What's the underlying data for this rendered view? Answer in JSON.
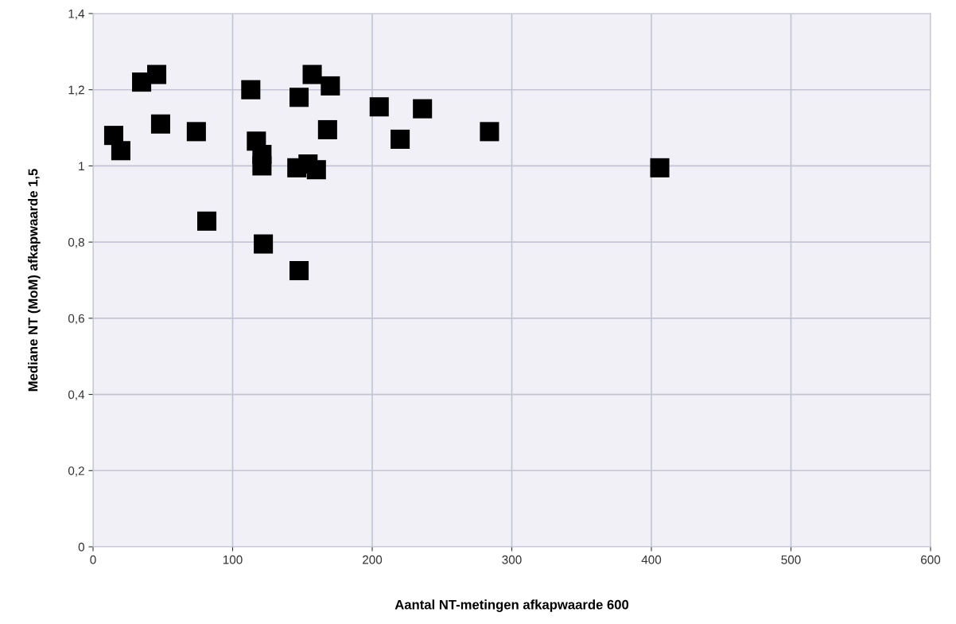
{
  "chart_data": {
    "type": "scatter",
    "xlabel": "Aantal NT-metingen afkapwaarde 600",
    "ylabel": "Mediane NT (MoM) afkapwaarde 1,5",
    "x": [
      14.8,
      19.9,
      34.8,
      45.6,
      48.4,
      74,
      81.5,
      113,
      117,
      121,
      121,
      122,
      147.6,
      147.6,
      146,
      154,
      160,
      157,
      170,
      168,
      205,
      220,
      236,
      284,
      406
    ],
    "values": [
      1.08,
      1.04,
      1.22,
      1.24,
      1.11,
      1.09,
      0.855,
      1.2,
      1.065,
      1.03,
      1.0,
      0.795,
      1.18,
      0.725,
      0.995,
      1.005,
      0.99,
      1.24,
      1.21,
      1.095,
      1.155,
      1.07,
      1.15,
      1.09,
      0.995
    ],
    "color": "#000000",
    "marker": "square",
    "grid": true,
    "xlim": [
      0,
      600
    ],
    "xticks": [
      0,
      100,
      200,
      300,
      400,
      500,
      600
    ],
    "ylim": [
      0,
      1.4
    ],
    "yticks": [
      {
        "value": 0,
        "label": "0"
      },
      {
        "value": 0.2,
        "label": "0,2"
      },
      {
        "value": 0.4,
        "label": "0,4"
      },
      {
        "value": 0.6,
        "label": "0,6"
      },
      {
        "value": 0.8,
        "label": "0,8"
      },
      {
        "value": 1,
        "label": "1"
      },
      {
        "value": 1.2,
        "label": "1,2"
      },
      {
        "value": 1.4,
        "label": "1,4"
      }
    ]
  }
}
